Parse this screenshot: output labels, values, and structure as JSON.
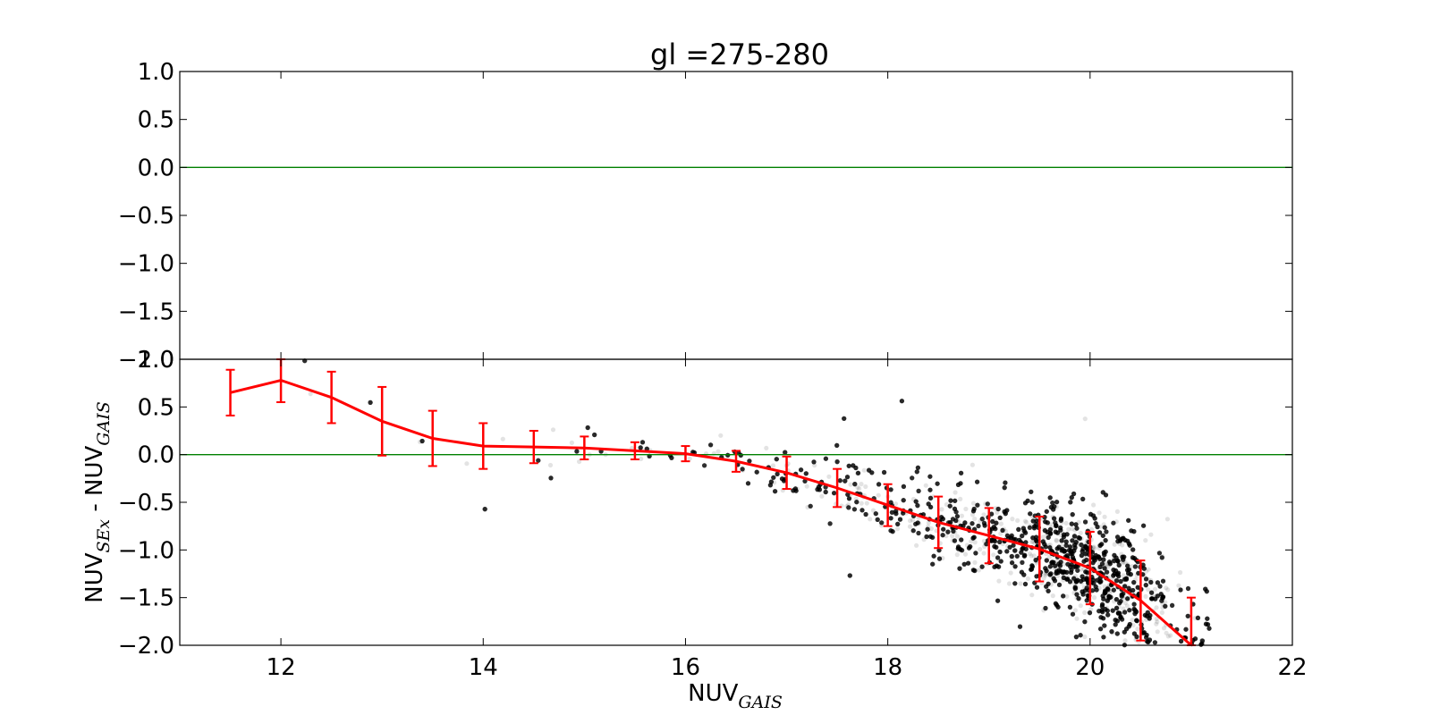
{
  "chart_data": {
    "type": "scatter",
    "title": "gl =275-280",
    "xlabel": {
      "main": "NUV",
      "sub": "GAIS"
    },
    "ylabel": {
      "main1": "NUV",
      "sub1": "SEx",
      "mid": " - NUV",
      "sub2": "GAIS"
    },
    "xlim": [
      11,
      22
    ],
    "ylim": [
      -2.0,
      1.0
    ],
    "xticks": [
      12,
      14,
      16,
      18,
      20,
      22
    ],
    "yticks": [
      1.0,
      0.5,
      0.0,
      -0.5,
      -1.0,
      -1.5,
      -2.0
    ],
    "xtick_labels": [
      "12",
      "14",
      "16",
      "18",
      "20",
      "22"
    ],
    "ytick_labels": [
      "1.0",
      "0.5",
      "0.0",
      "−0.5",
      "−1.0",
      "−1.5",
      "−2.0"
    ],
    "grid": false,
    "panels": [
      {
        "name": "top",
        "reference_line_y": 0.0,
        "points": false
      },
      {
        "name": "bottom",
        "reference_line_y": 0.0,
        "points": true
      }
    ],
    "series": [
      {
        "kind": "binned_median_with_errorbars",
        "x": [
          11.5,
          12.0,
          12.5,
          13.0,
          13.5,
          14.0,
          14.5,
          15.0,
          15.5,
          16.0,
          16.5,
          17.0,
          17.5,
          18.0,
          18.5,
          19.0,
          19.5,
          20.0,
          20.5,
          21.0
        ],
        "y": [
          0.65,
          0.78,
          0.6,
          0.35,
          0.17,
          0.09,
          0.08,
          0.07,
          0.04,
          0.01,
          -0.07,
          -0.19,
          -0.35,
          -0.53,
          -0.71,
          -0.85,
          -0.99,
          -1.19,
          -1.53,
          -2.0
        ],
        "yerr": [
          0.24,
          0.23,
          0.27,
          0.36,
          0.29,
          0.24,
          0.17,
          0.12,
          0.09,
          0.08,
          0.11,
          0.17,
          0.2,
          0.22,
          0.27,
          0.29,
          0.34,
          0.38,
          0.42,
          0.5
        ]
      },
      {
        "kind": "scatter_density",
        "description_ranges": {
          "x_range": [
            11.5,
            21.8
          ],
          "approx_points": 12000
        }
      }
    ],
    "colors": {
      "line": "#ff0000",
      "reference": "#008000",
      "points": "#000000"
    }
  }
}
